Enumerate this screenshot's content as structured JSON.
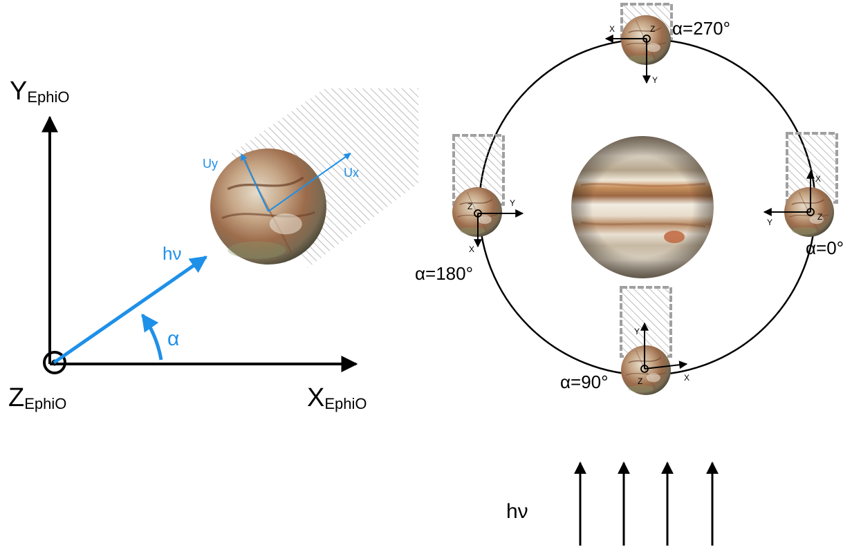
{
  "left_frame": {
    "y_axis": {
      "main": "Y",
      "sub": "EphiO"
    },
    "x_axis": {
      "main": "X",
      "sub": "EphiO"
    },
    "z_axis": {
      "main": "Z",
      "sub": "EphiO"
    },
    "photon_label": "hν",
    "angle_label": "α",
    "moon_axis_x": "Ux",
    "moon_axis_y": "Uy"
  },
  "orbit": {
    "phases": [
      {
        "label": "α=0°",
        "ax1": "X",
        "ax2": "Y",
        "ax3": "Z"
      },
      {
        "label": "α=90°",
        "ax1": "Y",
        "ax2": "X",
        "ax3": "Z"
      },
      {
        "label": "α=180°",
        "ax1": "Y",
        "ax2": "X",
        "ax3": "Z"
      },
      {
        "label": "α=270°",
        "ax1": "X",
        "ax2": "Y",
        "ax3": "Z"
      }
    ]
  },
  "sunlight_label": "hν",
  "colors": {
    "accent_blue": "#1e90e8",
    "hatch": "#999999",
    "ink": "#000000"
  }
}
